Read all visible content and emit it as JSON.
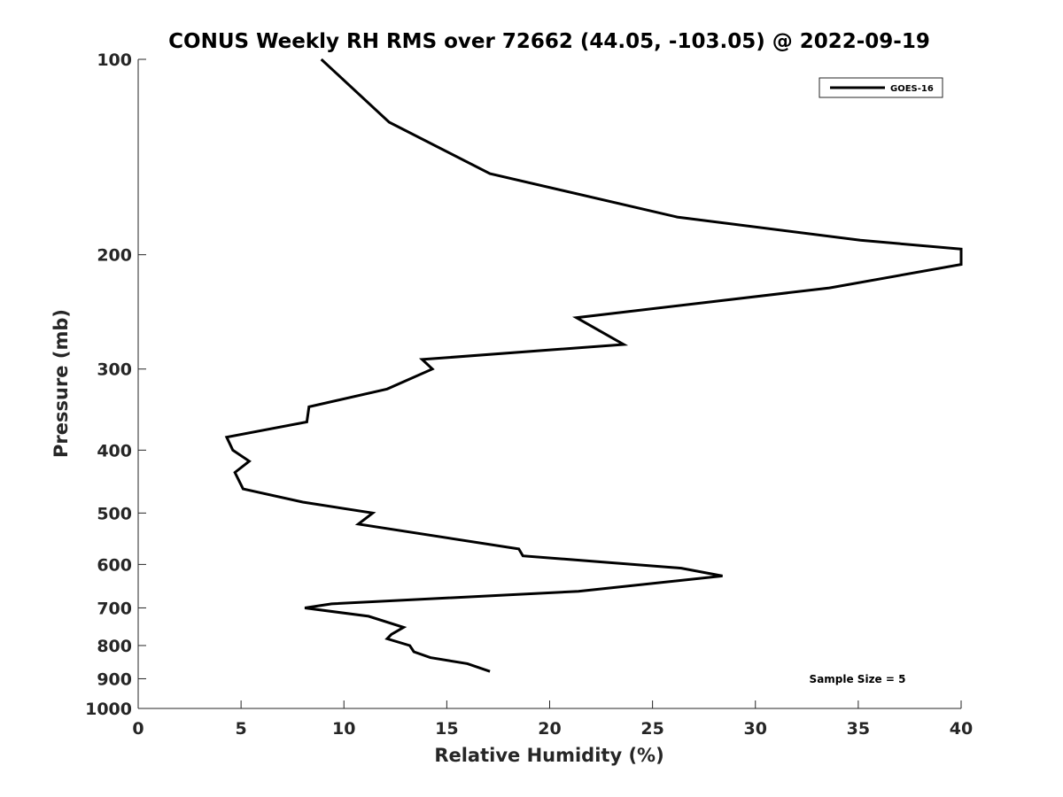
{
  "chart_data": {
    "type": "line",
    "title": "CONUS Weekly RH RMS over 72662 (44.05, -103.05) @ 2022-09-19",
    "xlabel": "Relative Humidity (%)",
    "ylabel": "Pressure (mb)",
    "xlim": [
      0,
      40
    ],
    "ylim": [
      100,
      1000
    ],
    "y_scale": "log",
    "y_reversed": true,
    "x_ticks": [
      "0",
      "5",
      "10",
      "15",
      "20",
      "25",
      "30",
      "35",
      "40"
    ],
    "y_ticks": [
      "100",
      "200",
      "300",
      "400",
      "500",
      "600",
      "700",
      "800",
      "900",
      "1000"
    ],
    "grid": false,
    "legend_position": "top-right",
    "annotation": "Sample Size = 5",
    "series": [
      {
        "name": "GOES-16",
        "color": "#000000",
        "points": [
          [
            8.9,
            100
          ],
          [
            12.2,
            125
          ],
          [
            17.1,
            150
          ],
          [
            26.2,
            175
          ],
          [
            35.1,
            190
          ],
          [
            40.0,
            196
          ],
          [
            40.0,
            207
          ],
          [
            33.6,
            225
          ],
          [
            21.3,
            250
          ],
          [
            23.6,
            275
          ],
          [
            13.8,
            290
          ],
          [
            14.3,
            300
          ],
          [
            12.1,
            322
          ],
          [
            8.3,
            343
          ],
          [
            8.2,
            362
          ],
          [
            4.3,
            382
          ],
          [
            4.6,
            400
          ],
          [
            5.4,
            416
          ],
          [
            4.7,
            433
          ],
          [
            5.1,
            459
          ],
          [
            8.0,
            481
          ],
          [
            11.4,
            500
          ],
          [
            10.7,
            520
          ],
          [
            18.5,
            568
          ],
          [
            18.7,
            582
          ],
          [
            26.4,
            608
          ],
          [
            28.4,
            625
          ],
          [
            21.4,
            660
          ],
          [
            9.4,
            690
          ],
          [
            8.1,
            700
          ],
          [
            11.2,
            721
          ],
          [
            12.9,
            750
          ],
          [
            12.3,
            769
          ],
          [
            12.1,
            781
          ],
          [
            13.2,
            800
          ],
          [
            13.4,
            818
          ],
          [
            14.2,
            835
          ],
          [
            16.0,
            853
          ],
          [
            17.1,
            877
          ]
        ]
      }
    ]
  }
}
